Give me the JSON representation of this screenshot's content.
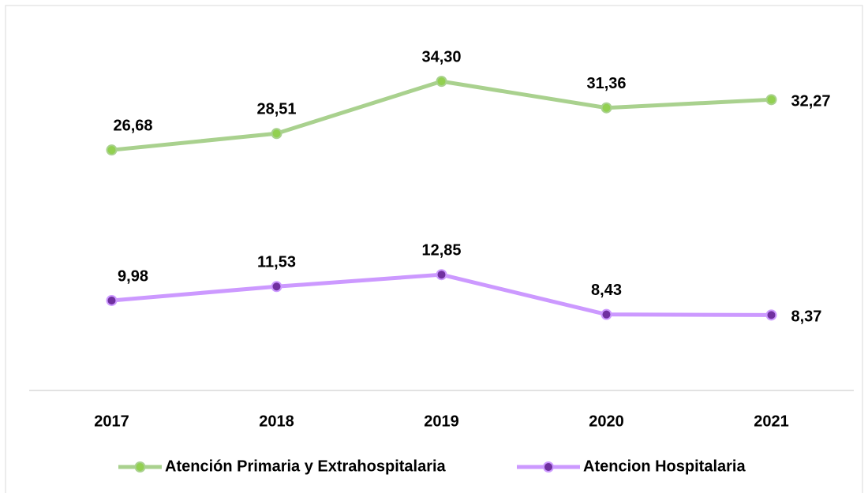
{
  "chart_data": {
    "type": "line",
    "categories": [
      "2017",
      "2018",
      "2019",
      "2020",
      "2021"
    ],
    "series": [
      {
        "name": "Atención Primaria y Extrahospitalaria",
        "color": "#a9d18e",
        "marker_color": "#92d050",
        "values": [
          26.68,
          28.51,
          34.3,
          31.36,
          32.27
        ],
        "value_labels": [
          "26,68",
          "28,51",
          "34,30",
          "31,36",
          "32,27"
        ]
      },
      {
        "name": "Atencion Hospitalaria",
        "color": "#cc99ff",
        "marker_color": "#7030a0",
        "values": [
          9.98,
          11.53,
          12.85,
          8.43,
          8.37
        ],
        "value_labels": [
          "9,98",
          "11,53",
          "12,85",
          "8,43",
          "8,37"
        ]
      }
    ],
    "ylim": [
      0,
      40
    ],
    "legend": "bottom"
  }
}
